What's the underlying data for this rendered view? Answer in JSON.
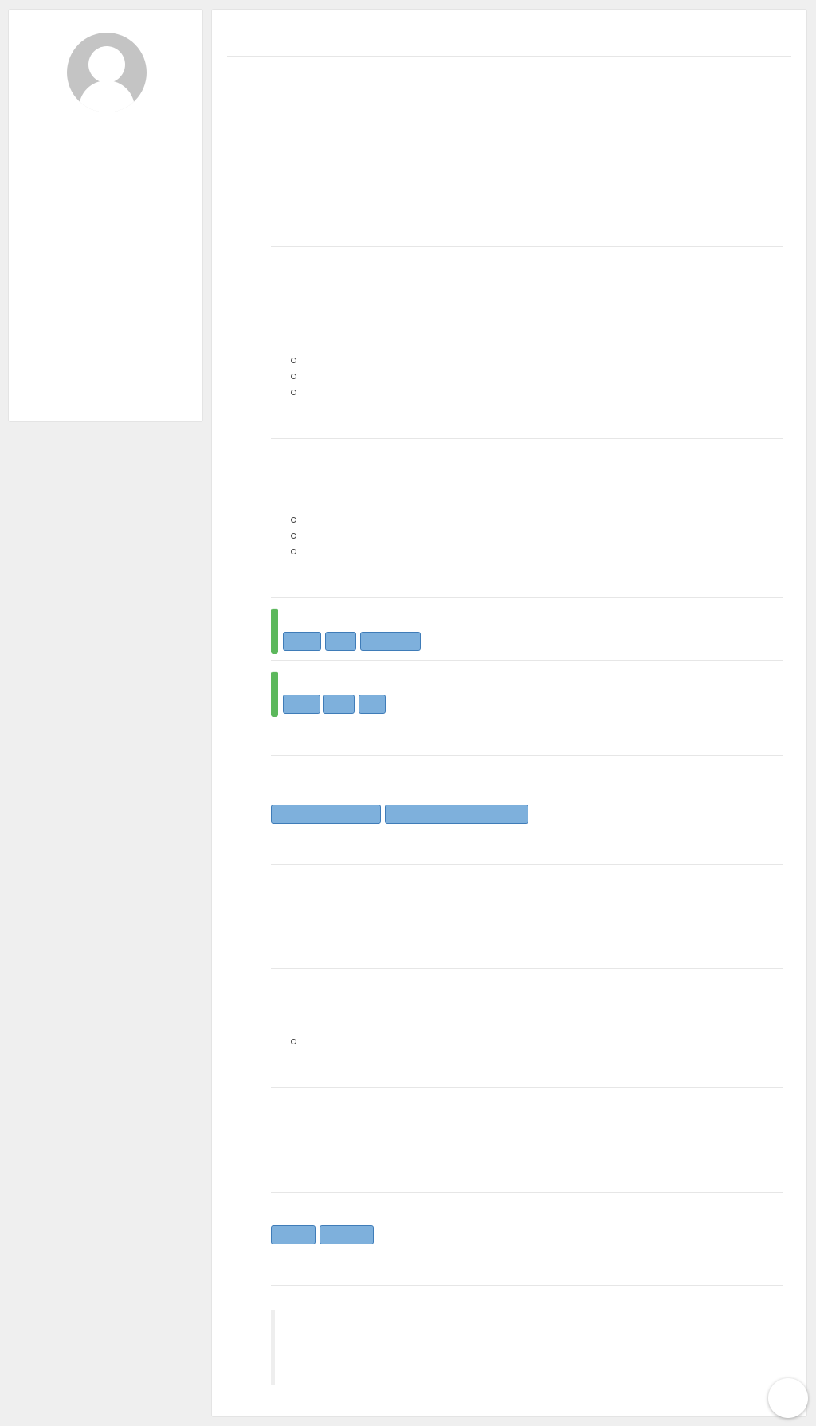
{
  "colors": {
    "background": "#efefef",
    "card": "#ffffff",
    "avatar": "#c4c4c4",
    "button": "#7eb0dc",
    "button_border": "#3f7cb8",
    "status_bar": "#5cb85c",
    "divider": "#e6e6e6"
  },
  "sidebar": {
    "avatar_icon": "user-silhouette-icon"
  },
  "main": {
    "button_groups": [
      {
        "buttons": [
          "",
          "",
          ""
        ]
      },
      {
        "buttons": [
          "",
          "",
          ""
        ]
      },
      {
        "buttons": [
          "",
          ""
        ]
      },
      {
        "buttons": [
          "",
          ""
        ]
      }
    ]
  }
}
